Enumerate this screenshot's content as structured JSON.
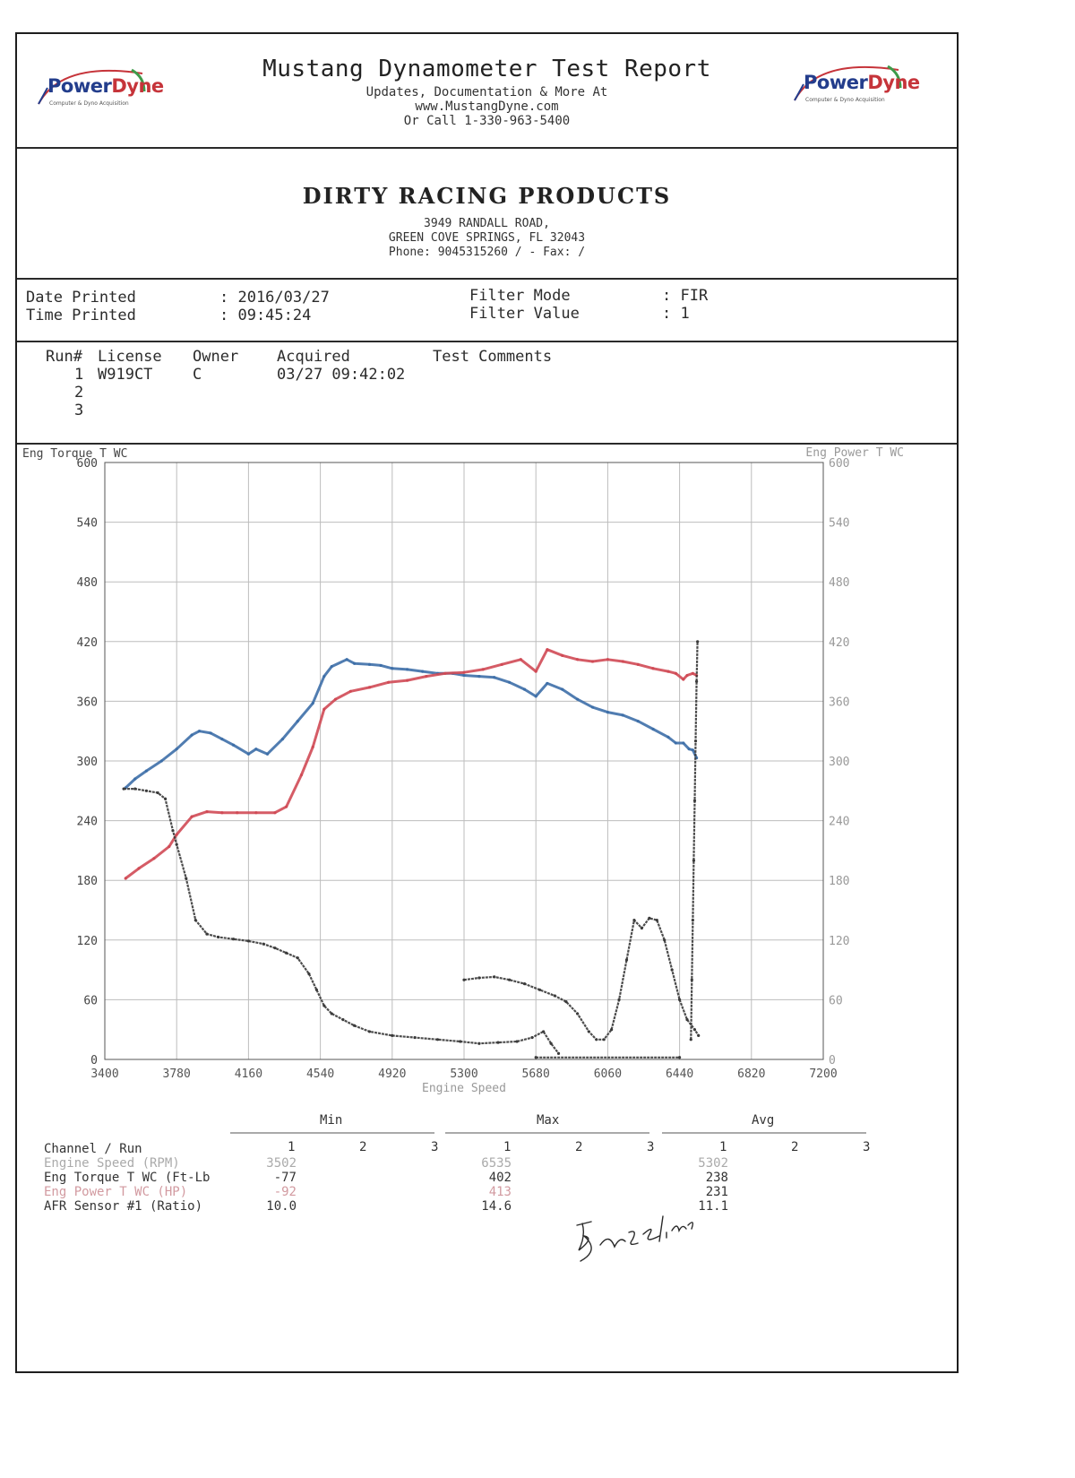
{
  "header": {
    "logo_text_1": "Power",
    "logo_text_2": "Dyne",
    "logo_tag": "Computer & Dyno Acquisition",
    "title": "Mustang Dynamometer Test Report",
    "line1": "Updates, Documentation & More At",
    "line2": "www.MustangDyne.com",
    "line3": "Or Call 1-330-963-5400"
  },
  "shop": {
    "name": "DIRTY RACING PRODUCTS",
    "address1": "3949 RANDALL ROAD,",
    "address2": "GREEN COVE SPRINGS, FL  32043",
    "phone": "Phone: 9045315260 /  - Fax:  /"
  },
  "info": {
    "date_label": "Date Printed",
    "date_value": ": 2016/03/27",
    "time_label": "Time Printed",
    "time_value": ": 09:45:24",
    "filter_mode_label": "Filter Mode",
    "filter_mode_value": ": FIR",
    "filter_value_label": "Filter Value",
    "filter_value_value": ": 1"
  },
  "runs": {
    "headers": [
      "Run#",
      "License",
      "Owner",
      "Acquired",
      "Test Comments"
    ],
    "rows": [
      {
        "run": "1",
        "license": "W919CT",
        "owner": "C",
        "acquired": "03/27 09:42:02",
        "comments": ""
      },
      {
        "run": "2",
        "license": "",
        "owner": "",
        "acquired": "",
        "comments": ""
      },
      {
        "run": "3",
        "license": "",
        "owner": "",
        "acquired": "",
        "comments": ""
      }
    ]
  },
  "chart_data": {
    "type": "line",
    "xlabel": "Engine Speed",
    "ylabel_left": "Eng Torque T WC",
    "ylabel_right": "Eng Power T WC",
    "xlim": [
      3400,
      7200
    ],
    "ylim": [
      0,
      600
    ],
    "xticks": [
      3400,
      3780,
      4160,
      4540,
      4920,
      5300,
      5680,
      6060,
      6440,
      6820,
      7200
    ],
    "yticks": [
      0,
      60,
      120,
      180,
      240,
      300,
      360,
      420,
      480,
      540,
      600
    ],
    "grid": true,
    "colors": {
      "torque": "#3e6fa8",
      "power": "#d04a55",
      "afr": "#3a3a3a"
    },
    "series": [
      {
        "key": "torque",
        "x": [
          3510,
          3560,
          3620,
          3700,
          3780,
          3860,
          3900,
          3960,
          4020,
          4080,
          4160,
          4200,
          4260,
          4340,
          4420,
          4500,
          4560,
          4600,
          4680,
          4720,
          4800,
          4860,
          4920,
          5000,
          5080,
          5160,
          5240,
          5300,
          5380,
          5460,
          5540,
          5620,
          5680,
          5740,
          5820,
          5900,
          5980,
          6060,
          6140,
          6220,
          6300,
          6380,
          6420,
          6460,
          6490,
          6510,
          6530
        ],
        "y": [
          273,
          282,
          290,
          300,
          312,
          326,
          330,
          328,
          322,
          316,
          307,
          312,
          307,
          322,
          340,
          358,
          385,
          395,
          402,
          398,
          397,
          396,
          393,
          392,
          390,
          388,
          388,
          386,
          385,
          384,
          379,
          372,
          365,
          378,
          372,
          362,
          354,
          349,
          346,
          340,
          332,
          324,
          318,
          318,
          312,
          311,
          303
        ]
      },
      {
        "key": "power",
        "x": [
          3510,
          3580,
          3660,
          3740,
          3780,
          3860,
          3940,
          4020,
          4100,
          4200,
          4300,
          4360,
          4440,
          4500,
          4560,
          4620,
          4700,
          4800,
          4900,
          5000,
          5100,
          5200,
          5300,
          5400,
          5500,
          5600,
          5680,
          5740,
          5820,
          5900,
          5980,
          6060,
          6140,
          6220,
          6300,
          6380,
          6420,
          6460,
          6480,
          6510,
          6530
        ],
        "y": [
          182,
          192,
          202,
          214,
          226,
          244,
          249,
          248,
          248,
          248,
          248,
          254,
          286,
          314,
          352,
          362,
          370,
          374,
          379,
          381,
          385,
          388,
          389,
          392,
          397,
          402,
          390,
          412,
          406,
          402,
          400,
          402,
          400,
          397,
          393,
          390,
          388,
          382,
          386,
          388,
          386
        ]
      },
      {
        "key": "afr_left",
        "x": [
          3500,
          3560,
          3620,
          3680,
          3720,
          3760,
          3780,
          3830,
          3880,
          3940,
          4000,
          4080,
          4160,
          4240,
          4300,
          4360,
          4420,
          4480,
          4520,
          4560,
          4600,
          4660,
          4720,
          4800,
          4920,
          5040,
          5160,
          5280,
          5380,
          5480,
          5580,
          5660,
          5720,
          5760,
          5800
        ],
        "y": [
          272,
          272,
          270,
          268,
          262,
          230,
          216,
          182,
          140,
          126,
          123,
          121,
          119,
          116,
          112,
          107,
          102,
          86,
          70,
          54,
          46,
          40,
          34,
          28,
          24,
          22,
          20,
          18,
          16,
          17,
          18,
          22,
          28,
          16,
          6
        ]
      },
      {
        "key": "afr_right",
        "x": [
          5300,
          5380,
          5460,
          5540,
          5620,
          5700,
          5780,
          5840,
          5900,
          5960,
          6000,
          6040,
          6080,
          6120,
          6160,
          6200,
          6240,
          6280,
          6320,
          6360,
          6400,
          6440,
          6480,
          6520,
          6540
        ],
        "y": [
          80,
          82,
          83,
          80,
          76,
          70,
          64,
          58,
          46,
          28,
          20,
          20,
          30,
          60,
          100,
          140,
          132,
          142,
          140,
          120,
          90,
          60,
          40,
          30,
          24
        ]
      },
      {
        "key": "afr_base",
        "x": [
          5680,
          6440
        ],
        "y": [
          2,
          2
        ]
      },
      {
        "key": "afr_vertical",
        "x": [
          6500,
          6505,
          6510,
          6515,
          6520,
          6525,
          6530,
          6535
        ],
        "y": [
          20,
          80,
          140,
          200,
          260,
          320,
          380,
          420
        ]
      }
    ]
  },
  "stats": {
    "groups": [
      "Min",
      "Max",
      "Avg"
    ],
    "channel_header": "Channel / Run",
    "run_headers": [
      "1",
      "2",
      "3"
    ],
    "rows": [
      {
        "channel": "Engine Speed (RPM)",
        "min": "3502",
        "max": "6535",
        "avg": "5302"
      },
      {
        "channel": "Eng Torque T WC (Ft-Lb",
        "min": "-77",
        "max": "402",
        "avg": "238"
      },
      {
        "channel": "Eng Power T WC (HP)",
        "min": "-92",
        "max": "413",
        "avg": "231"
      },
      {
        "channel": "AFR Sensor #1 (Ratio)",
        "min": "10.0",
        "max": "14.6",
        "avg": "11.1"
      }
    ]
  },
  "signature": "Baseline"
}
